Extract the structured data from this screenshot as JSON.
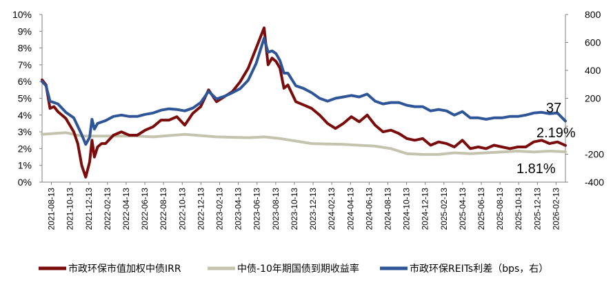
{
  "chart_data": {
    "type": "line",
    "title": "",
    "grid": false,
    "legend_position": "bottom",
    "colors": {
      "irr": "#7a0c0c",
      "cgb": "#c4c4ae",
      "spread": "#2e5597",
      "axis": "#7f7f7f"
    },
    "y_left": {
      "lim": [
        0,
        10
      ],
      "ticks": [
        "0%",
        "1%",
        "2%",
        "3%",
        "4%",
        "5%",
        "6%",
        "7%",
        "8%",
        "9%",
        "10%"
      ]
    },
    "y_right": {
      "lim": [
        -400,
        800
      ],
      "ticks": [
        "-400",
        "-200",
        "",
        "200",
        "400",
        "600",
        "800"
      ]
    },
    "x_tick_labels": [
      "2021-08-13",
      "2021-10-13",
      "2021-12-13",
      "2022-02-13",
      "2022-04-13",
      "2022-06-13",
      "2022-08-13",
      "2022-10-13",
      "2022-12-13",
      "2023-02-13",
      "2023-04-13",
      "2023-06-13",
      "2023-08-13",
      "2023-10-13",
      "2023-12-13",
      "2024-02-13",
      "2024-04-13",
      "2024-06-13",
      "2024-08-13",
      "2024-10-13",
      "2024-12-13",
      "2025-02-13",
      "2025-04-13",
      "2025-06-13",
      "2025-08-13",
      "2025-10-13",
      "2025-12-13",
      "2026-02-13"
    ],
    "series": [
      {
        "name": "市政环保市值加权中债IRR",
        "axis": "left",
        "x": [
          0,
          0.5,
          1,
          1.5,
          2,
          3,
          4,
          4.5,
          5,
          5.5,
          6,
          6.3,
          6.6,
          7,
          7.5,
          8,
          9,
          10,
          11,
          12,
          13,
          14,
          15,
          16,
          17,
          18,
          19,
          20,
          21,
          22,
          23,
          24,
          25,
          26,
          27,
          28,
          28.5,
          29,
          29.5,
          30,
          30.5,
          31,
          32,
          33,
          34,
          35,
          36,
          37,
          38,
          39,
          40,
          41,
          42,
          43,
          44,
          45,
          46,
          47,
          48,
          49,
          50,
          51,
          52,
          53,
          54,
          55,
          56,
          57,
          58,
          59,
          60,
          61,
          62,
          63,
          64,
          65,
          66
        ],
        "values": [
          6.1,
          5.8,
          4.4,
          4.5,
          4.2,
          3.8,
          3.0,
          2.3,
          1.0,
          0.3,
          1.2,
          2.5,
          1.5,
          2.1,
          2.3,
          2.3,
          2.8,
          3.0,
          2.8,
          2.8,
          3.1,
          3.3,
          3.7,
          3.7,
          3.9,
          3.4,
          4.1,
          4.5,
          5.5,
          4.8,
          5.1,
          5.4,
          6.0,
          6.8,
          8.0,
          9.2,
          7.0,
          7.4,
          7.2,
          6.8,
          5.6,
          5.8,
          4.8,
          4.6,
          4.4,
          4.0,
          3.5,
          3.2,
          3.5,
          3.9,
          3.6,
          4.0,
          3.4,
          3.0,
          3.1,
          2.9,
          2.6,
          2.5,
          2.6,
          2.2,
          2.4,
          2.3,
          2.1,
          2.5,
          2.0,
          2.1,
          2.0,
          2.2,
          2.1,
          2.0,
          2.1,
          2.1,
          2.4,
          2.5,
          2.3,
          2.4,
          2.19
        ]
      },
      {
        "name": "中债-10年期国债到期收益率",
        "axis": "left",
        "x": [
          0,
          3,
          5,
          8,
          10,
          12,
          14,
          18,
          22,
          26,
          28,
          30,
          34,
          38,
          42,
          44,
          46,
          48,
          50,
          52,
          54,
          56,
          58,
          60,
          62,
          64,
          66
        ],
        "values": [
          2.85,
          2.95,
          2.75,
          2.75,
          2.75,
          2.75,
          2.7,
          2.85,
          2.7,
          2.65,
          2.7,
          2.6,
          2.3,
          2.25,
          2.15,
          2.0,
          1.7,
          1.65,
          1.65,
          1.75,
          1.7,
          1.75,
          1.8,
          1.85,
          1.8,
          1.85,
          1.81
        ]
      },
      {
        "name": "市政环保REITs利差（bps，右）",
        "axis": "right",
        "x": [
          0,
          0.5,
          1,
          1.5,
          2,
          3,
          4,
          4.5,
          5,
          5.5,
          6,
          6.3,
          6.6,
          7,
          7.5,
          8,
          9,
          10,
          11,
          12,
          13,
          14,
          15,
          16,
          17,
          18,
          19,
          20,
          21,
          22,
          23,
          24,
          25,
          26,
          27,
          28,
          28.5,
          29,
          29.5,
          30,
          30.5,
          31,
          32,
          33,
          34,
          35,
          36,
          37,
          38,
          39,
          40,
          41,
          42,
          43,
          44,
          45,
          46,
          47,
          48,
          49,
          50,
          51,
          52,
          53,
          54,
          55,
          56,
          57,
          58,
          59,
          60,
          61,
          62,
          63,
          64,
          65,
          66
        ],
        "values": [
          320,
          290,
          180,
          170,
          160,
          100,
          60,
          0,
          -60,
          -130,
          -80,
          50,
          -20,
          20,
          30,
          40,
          70,
          80,
          70,
          70,
          85,
          95,
          115,
          125,
          120,
          110,
          130,
          170,
          250,
          195,
          215,
          240,
          270,
          330,
          450,
          630,
          530,
          540,
          520,
          470,
          380,
          380,
          290,
          270,
          240,
          200,
          180,
          200,
          210,
          220,
          210,
          230,
          180,
          160,
          170,
          170,
          150,
          140,
          140,
          110,
          120,
          110,
          80,
          105,
          60,
          60,
          50,
          60,
          60,
          70,
          70,
          80,
          95,
          100,
          90,
          95,
          37
        ]
      }
    ],
    "annotations": [
      "37",
      "2.19%",
      "1.81%"
    ]
  },
  "legend": {
    "irr": "市政环保市值加权中债IRR",
    "cgb": "中债-10年期国债到期收益率",
    "spread": "市政环保REITs利差（bps，右）"
  }
}
